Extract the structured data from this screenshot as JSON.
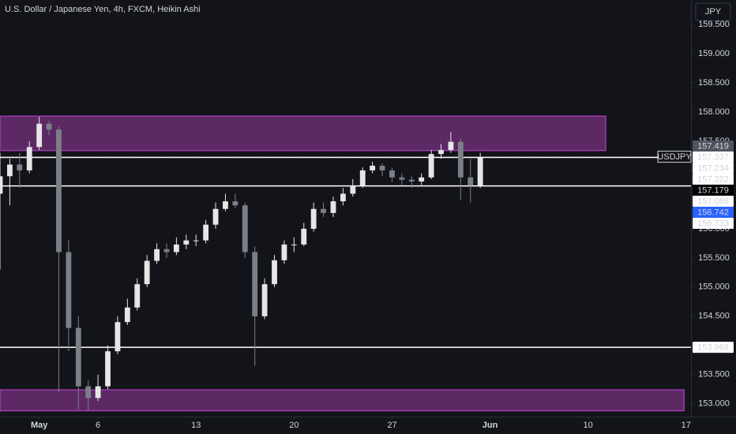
{
  "chart_data": {
    "type": "candlestick",
    "title": "U.S. Dollar / Japanese Yen, 4h, FXCM, Heikin Ashi",
    "currency_button": "JPY",
    "up_color": "#e6e6e6",
    "down_color": "#7c7f88",
    "x": [
      0,
      1,
      2,
      3,
      4,
      5,
      6,
      7,
      8,
      9,
      10,
      11,
      12,
      13,
      14,
      15,
      16,
      17,
      18,
      19,
      20,
      21,
      22,
      23,
      24,
      25,
      26,
      27,
      28,
      29,
      30,
      31,
      32,
      33,
      34,
      35,
      36,
      37,
      38,
      39,
      40,
      41,
      42,
      43,
      44,
      45,
      46,
      47,
      48,
      49
    ],
    "open": [
      156.6,
      156.9,
      157.1,
      157.0,
      157.4,
      157.8,
      157.7,
      155.6,
      154.3,
      153.3,
      153.1,
      153.3,
      153.9,
      154.4,
      154.65,
      155.05,
      155.45,
      155.65,
      155.6,
      155.73,
      155.8,
      155.8,
      156.07,
      156.34,
      156.47,
      156.4,
      155.6,
      154.5,
      155.05,
      155.46,
      155.73,
      155.73,
      156.0,
      156.34,
      156.27,
      156.47,
      156.6,
      156.74,
      157.0,
      157.08,
      157.0,
      156.88,
      156.84,
      156.81,
      156.88,
      157.28,
      157.35,
      157.49,
      156.88,
      156.74
    ],
    "high": [
      157.3,
      157.2,
      157.3,
      157.5,
      157.92,
      157.85,
      157.75,
      155.8,
      154.5,
      153.4,
      153.5,
      154.0,
      154.5,
      154.8,
      155.15,
      155.55,
      155.75,
      155.75,
      155.85,
      155.9,
      155.9,
      156.15,
      156.45,
      156.6,
      156.6,
      156.45,
      155.7,
      155.15,
      155.55,
      155.8,
      155.85,
      156.1,
      156.45,
      156.45,
      156.55,
      156.7,
      156.85,
      157.05,
      157.15,
      157.12,
      157.05,
      156.95,
      156.9,
      156.95,
      157.35,
      157.45,
      157.66,
      157.55,
      157.2,
      157.3
    ],
    "low": [
      155.3,
      156.4,
      156.7,
      156.95,
      157.35,
      157.6,
      153.2,
      153.9,
      152.9,
      152.88,
      153.05,
      153.25,
      153.85,
      154.35,
      154.6,
      155.0,
      155.4,
      155.5,
      155.55,
      155.65,
      155.7,
      155.75,
      156.0,
      156.3,
      156.35,
      155.5,
      153.65,
      154.45,
      155.0,
      155.4,
      155.6,
      155.7,
      155.95,
      156.2,
      156.2,
      156.4,
      156.55,
      156.7,
      156.95,
      156.9,
      156.8,
      156.75,
      156.7,
      156.75,
      156.85,
      157.2,
      157.3,
      156.5,
      156.45,
      156.7
    ],
    "close": [
      156.9,
      157.1,
      157.0,
      157.4,
      157.8,
      157.7,
      155.6,
      154.3,
      153.3,
      153.1,
      153.3,
      153.9,
      154.4,
      154.65,
      155.05,
      155.45,
      155.65,
      155.6,
      155.73,
      155.8,
      155.8,
      156.07,
      156.34,
      156.47,
      156.4,
      155.6,
      154.5,
      155.05,
      155.46,
      155.73,
      155.73,
      156.0,
      156.34,
      156.27,
      156.47,
      156.6,
      156.74,
      157.0,
      157.08,
      157.0,
      156.88,
      156.84,
      156.81,
      156.88,
      157.28,
      157.35,
      157.49,
      156.88,
      156.74,
      157.22
    ],
    "xlim": [
      0,
      70.5
    ],
    "xticks": [
      {
        "value": 4,
        "label": "May"
      },
      {
        "value": 10,
        "label": "6"
      },
      {
        "value": 20,
        "label": "13"
      },
      {
        "value": 30,
        "label": "20"
      },
      {
        "value": 40,
        "label": "27"
      },
      {
        "value": 50,
        "label": "Jun"
      },
      {
        "value": 60,
        "label": "10"
      },
      {
        "value": 70,
        "label": "17"
      }
    ],
    "ylim": [
      152.78,
      159.92
    ],
    "yticks": [
      {
        "value": 153,
        "label": "153.000"
      },
      {
        "value": 153.5,
        "label": "153.500"
      },
      {
        "value": 154,
        "label": "154.000"
      },
      {
        "value": 154.5,
        "label": "154.500"
      },
      {
        "value": 155,
        "label": "155.000"
      },
      {
        "value": 155.5,
        "label": "155.500"
      },
      {
        "value": 156,
        "label": "156.000"
      },
      {
        "value": 156.5,
        "label": "156.500"
      },
      {
        "value": 157,
        "label": "157.000"
      },
      {
        "value": 157.5,
        "label": "157.500"
      },
      {
        "value": 158,
        "label": "158.000"
      },
      {
        "value": 158.5,
        "label": "158.500"
      },
      {
        "value": 159,
        "label": "159.000"
      },
      {
        "value": 159.5,
        "label": "159.500"
      }
    ],
    "zones": [
      {
        "from": 157.34,
        "to": 157.93,
        "x_end": 61.8
      },
      {
        "from": 152.88,
        "to": 153.24,
        "x_end": 69.8
      }
    ],
    "zone_color": "#6a2d73",
    "lines": [
      157.222,
      156.733,
      153.968
    ],
    "symbol_line": {
      "value": 157.234,
      "label": "USDJPY"
    },
    "price_labels": [
      {
        "value": 157.419,
        "bg": "#50535e",
        "fg": "#ffffff"
      },
      {
        "value": 157.337,
        "bg": "#ffffff",
        "fg": "#131722"
      },
      {
        "value": 157.234,
        "bg": "#ffffff",
        "fg": "#131722"
      },
      {
        "value": 157.222,
        "bg": "#ffffff",
        "fg": "#131722"
      },
      {
        "value": 157.179,
        "bg": "#000000",
        "fg": "#ffffff"
      },
      {
        "value": 157.088,
        "bg": "#ffffff",
        "fg": "#131722"
      },
      {
        "value": 156.742,
        "bg": "#2962ff",
        "fg": "#ffffff"
      },
      {
        "value": 156.733,
        "bg": "#ffffff",
        "fg": "#131722"
      },
      {
        "value": 153.968,
        "bg": "#ffffff",
        "fg": "#131722"
      }
    ]
  }
}
